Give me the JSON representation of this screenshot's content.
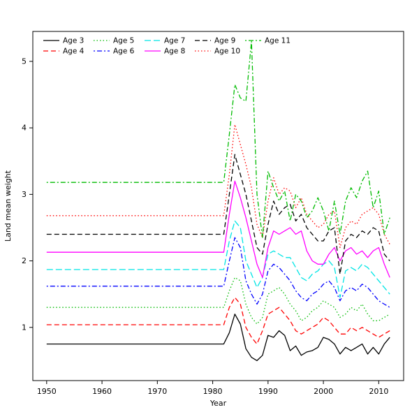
{
  "chart_data": {
    "type": "line",
    "title": "",
    "xlabel": "Year",
    "ylabel": "Land mean weight",
    "xlim": [
      1947.5,
      2014.5
    ],
    "ylim": [
      0.2,
      5.45
    ],
    "xticks": [
      1950,
      1960,
      1970,
      1980,
      1990,
      2000,
      2010
    ],
    "yticks": [
      1,
      2,
      3,
      4,
      5
    ],
    "grid": false,
    "legend_position": "top-left-inside",
    "legend_ncol": 5,
    "years_start": 1950,
    "flat_until": 1982,
    "post_years_start": 1983,
    "series": [
      {
        "name": "Age 3",
        "color": "#000000",
        "linestyle": "solid",
        "flat_value": 0.75,
        "post_values": [
          0.92,
          1.2,
          1.05,
          0.68,
          0.55,
          0.5,
          0.58,
          0.88,
          0.85,
          0.95,
          0.88,
          0.65,
          0.72,
          0.58,
          0.63,
          0.65,
          0.7,
          0.85,
          0.82,
          0.75,
          0.6,
          0.7,
          0.65,
          0.7,
          0.75,
          0.6,
          0.7,
          0.6,
          0.75,
          0.85
        ]
      },
      {
        "name": "Age 4",
        "color": "#ff0000",
        "linestyle": "dashed",
        "flat_value": 1.04,
        "post_values": [
          1.3,
          1.45,
          1.35,
          1.0,
          0.85,
          0.75,
          0.95,
          1.2,
          1.25,
          1.3,
          1.2,
          1.1,
          0.95,
          0.9,
          0.95,
          1.0,
          1.05,
          1.15,
          1.1,
          1.0,
          0.9,
          0.9,
          1.0,
          0.95,
          1.0,
          0.95,
          0.9,
          0.85,
          0.9,
          0.95
        ]
      },
      {
        "name": "Age 5",
        "color": "#00bb00",
        "linestyle": "dotted",
        "flat_value": 1.3,
        "post_values": [
          1.55,
          1.75,
          1.7,
          1.35,
          1.15,
          1.05,
          1.15,
          1.5,
          1.55,
          1.6,
          1.5,
          1.35,
          1.25,
          1.1,
          1.15,
          1.25,
          1.3,
          1.4,
          1.35,
          1.3,
          1.15,
          1.2,
          1.3,
          1.25,
          1.35,
          1.2,
          1.1,
          1.1,
          1.15,
          1.2
        ]
      },
      {
        "name": "Age 6",
        "color": "#0000ff",
        "linestyle": "dashdot",
        "flat_value": 1.62,
        "post_values": [
          2.0,
          2.35,
          2.2,
          1.7,
          1.5,
          1.35,
          1.5,
          1.85,
          1.95,
          1.9,
          1.8,
          1.7,
          1.55,
          1.45,
          1.4,
          1.5,
          1.55,
          1.65,
          1.7,
          1.6,
          1.4,
          1.55,
          1.6,
          1.55,
          1.65,
          1.6,
          1.5,
          1.4,
          1.35,
          1.3
        ]
      },
      {
        "name": "Age 7",
        "color": "#00e5e5",
        "linestyle": "longdash",
        "flat_value": 1.87,
        "post_values": [
          2.3,
          2.6,
          2.5,
          2.0,
          1.8,
          1.6,
          1.75,
          2.1,
          2.15,
          2.1,
          2.05,
          2.05,
          1.9,
          1.75,
          1.7,
          1.8,
          1.85,
          1.95,
          2.0,
          1.9,
          1.45,
          1.85,
          1.9,
          1.85,
          1.95,
          1.9,
          1.8,
          1.7,
          1.6,
          1.5
        ]
      },
      {
        "name": "Age 8",
        "color": "#ff00ff",
        "linestyle": "solid",
        "flat_value": 2.13,
        "post_values": [
          2.7,
          3.2,
          2.95,
          2.65,
          2.3,
          1.95,
          1.75,
          2.2,
          2.45,
          2.4,
          2.45,
          2.5,
          2.4,
          2.45,
          2.15,
          2.0,
          1.95,
          1.95,
          2.1,
          2.2,
          2.0,
          2.15,
          2.2,
          2.1,
          2.15,
          2.05,
          2.15,
          2.2,
          1.95,
          1.75
        ]
      },
      {
        "name": "Age 9",
        "color": "#000000",
        "linestyle": "dashed",
        "flat_value": 2.4,
        "post_values": [
          3.0,
          3.6,
          3.3,
          3.0,
          2.6,
          2.2,
          2.1,
          2.55,
          2.9,
          2.7,
          2.8,
          2.85,
          2.6,
          2.7,
          2.5,
          2.4,
          2.3,
          2.3,
          2.45,
          2.5,
          1.8,
          2.3,
          2.4,
          2.35,
          2.45,
          2.4,
          2.5,
          2.45,
          2.1,
          2.0
        ]
      },
      {
        "name": "Age 10",
        "color": "#ff0000",
        "linestyle": "dotted",
        "flat_value": 2.68,
        "post_values": [
          3.3,
          4.05,
          3.75,
          3.45,
          3.1,
          2.55,
          2.35,
          2.9,
          3.25,
          3.0,
          3.1,
          3.05,
          2.8,
          2.95,
          2.7,
          2.6,
          2.5,
          2.55,
          2.7,
          2.75,
          2.2,
          2.5,
          2.6,
          2.55,
          2.7,
          2.75,
          2.8,
          2.7,
          2.4,
          2.25
        ]
      },
      {
        "name": "Age 11",
        "color": "#00bb00",
        "linestyle": "dashdot",
        "flat_value": 3.18,
        "post_values": [
          3.9,
          4.65,
          4.45,
          4.4,
          5.3,
          3.0,
          2.35,
          3.35,
          3.1,
          2.9,
          3.05,
          2.6,
          3.0,
          2.9,
          2.65,
          2.75,
          2.95,
          2.75,
          2.45,
          2.9,
          2.4,
          2.9,
          3.1,
          2.95,
          3.2,
          3.35,
          2.8,
          3.05,
          2.4,
          2.65
        ]
      }
    ]
  }
}
